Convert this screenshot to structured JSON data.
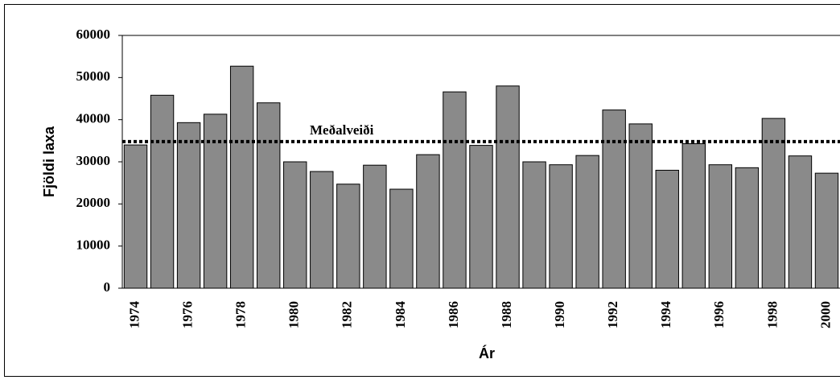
{
  "chart_data": {
    "type": "bar",
    "categories": [
      "1974",
      null,
      "1976",
      null,
      "1978",
      null,
      "1980",
      null,
      "1982",
      null,
      "1984",
      null,
      "1986",
      null,
      "1988",
      null,
      "1990",
      null,
      "1992",
      null,
      "1994",
      null,
      "1996",
      null,
      "1998",
      null,
      "2000"
    ],
    "values": [
      34000,
      45800,
      39300,
      41300,
      52700,
      44000,
      30000,
      27700,
      24700,
      29200,
      23500,
      31700,
      46600,
      33900,
      48000,
      30000,
      29300,
      31500,
      42300,
      39000,
      28000,
      34300,
      29300,
      28600,
      40300,
      31400,
      27300
    ],
    "color": "#8a8a8a",
    "ylim": [
      0,
      60000
    ],
    "yticks": [
      0,
      10000,
      20000,
      30000,
      40000,
      50000,
      60000
    ],
    "grid": false,
    "xlabel": "Ár",
    "ylabel": "Fjöldi laxa",
    "reference_line": {
      "value": 34800,
      "label": "Meðalveiði"
    }
  }
}
